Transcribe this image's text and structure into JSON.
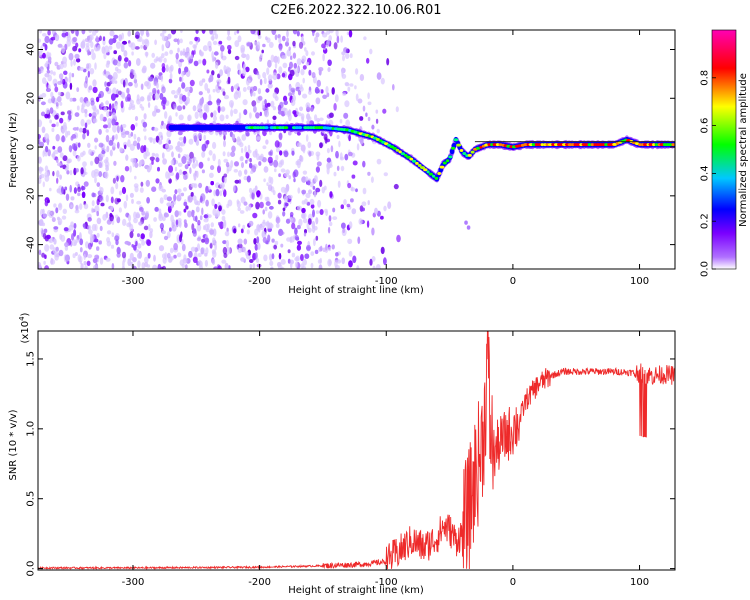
{
  "title": "C2E6.2022.322.10.06.R01",
  "chart_data": [
    {
      "type": "heatmap",
      "xlabel": "Height of straight line (km)",
      "ylabel": "Frequency (Hz)",
      "xlim": [
        -375,
        128
      ],
      "ylim": [
        -50,
        48
      ],
      "xticks": [
        -300,
        -200,
        -100,
        0,
        100
      ],
      "yticks": [
        -40,
        -20,
        0,
        20,
        40
      ],
      "xtick_labels": [
        "-300",
        "-200",
        "-100",
        "0",
        "100"
      ],
      "ytick_labels": [
        "-40",
        "-20",
        "0",
        "20",
        "40"
      ],
      "grid": false,
      "colorbar": {
        "label": "Normalized spectral amplitude",
        "range": [
          0,
          1
        ],
        "ticks": [
          0.0,
          0.2,
          0.4,
          0.6,
          0.8
        ],
        "tick_labels": [
          "0.0",
          "0.2",
          "0.4",
          "0.6",
          "0.8"
        ],
        "colormap": [
          "#ffffff",
          "#8a00ff",
          "#0000ff",
          "#00c8ff",
          "#00ff00",
          "#ffff00",
          "#ff0000",
          "#ff00b4"
        ]
      },
      "ridge": {
        "x": [
          -270,
          -240,
          -200,
          -170,
          -150,
          -130,
          -110,
          -95,
          -80,
          -70,
          -60,
          -55,
          -50,
          -45,
          -40,
          -35,
          -30,
          -20,
          -10,
          0,
          10,
          20,
          40,
          60,
          80,
          90,
          100,
          110,
          128
        ],
        "y": [
          8,
          8,
          8,
          8,
          8,
          7,
          4,
          0,
          -5,
          -9,
          -13,
          -7,
          -5,
          3,
          -2,
          -4,
          -1,
          1,
          1,
          0,
          1,
          1,
          1,
          1,
          1,
          3,
          1,
          1,
          1
        ]
      },
      "noise_region_x": [
        -375,
        -130
      ]
    },
    {
      "type": "line",
      "xlabel": "Height of straight line (km)",
      "ylabel": "SNR (10 * v/v)",
      "scale_label": "(x10",
      "scale_exp": "4",
      "scale_close": ")",
      "xlim": [
        -375,
        128
      ],
      "ylim": [
        -0.01,
        1.7
      ],
      "xticks": [
        -300,
        -200,
        -100,
        0,
        100
      ],
      "yticks": [
        0.0,
        0.5,
        1.0,
        1.5
      ],
      "xtick_labels": [
        "-300",
        "-200",
        "-100",
        "0",
        "100"
      ],
      "ytick_labels": [
        "0.0",
        "0.5",
        "1.0",
        "1.5"
      ],
      "grid": false,
      "series": [
        {
          "color": "#ee2a2a",
          "x": [
            -375,
            -300,
            -200,
            -150,
            -120,
            -100,
            -90,
            -80,
            -70,
            -60,
            -55,
            -50,
            -45,
            -40,
            -35,
            -30,
            -25,
            -22,
            -20,
            -18,
            -15,
            -10,
            -5,
            0,
            5,
            10,
            20,
            30,
            40,
            60,
            80,
            100,
            110,
            120,
            128
          ],
          "y": [
            0.005,
            0.005,
            0.01,
            0.02,
            0.03,
            0.05,
            0.12,
            0.2,
            0.15,
            0.22,
            0.3,
            0.28,
            0.2,
            0.25,
            0.4,
            0.65,
            0.85,
            1.1,
            1.6,
            1.0,
            0.82,
            0.9,
            0.95,
            1.0,
            1.05,
            1.2,
            1.32,
            1.38,
            1.41,
            1.41,
            1.41,
            1.4,
            1.38,
            1.39,
            1.38
          ]
        }
      ]
    }
  ]
}
